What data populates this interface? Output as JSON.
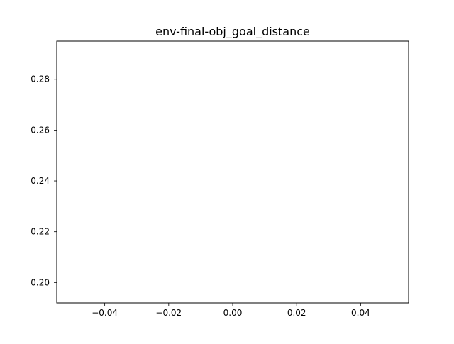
{
  "chart_data": {
    "type": "line",
    "title": "env-final-obj_goal_distance",
    "xlabel": "",
    "ylabel": "",
    "xlim": [
      -0.055,
      0.055
    ],
    "ylim": [
      0.192,
      0.295
    ],
    "x_ticks": [
      -0.04,
      -0.02,
      0.0,
      0.02,
      0.04
    ],
    "x_tick_labels": [
      "−0.04",
      "−0.02",
      "0.00",
      "0.02",
      "0.04"
    ],
    "y_ticks": [
      0.2,
      0.22,
      0.24,
      0.26,
      0.28
    ],
    "y_tick_labels": [
      "0.20",
      "0.22",
      "0.24",
      "0.26",
      "0.28"
    ],
    "grid": false,
    "series": []
  }
}
